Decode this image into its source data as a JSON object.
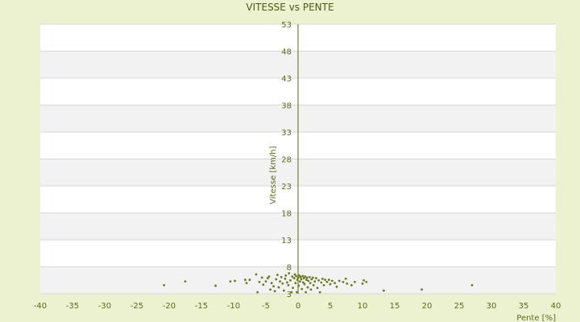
{
  "chart_data": {
    "type": "scatter",
    "title": "VITESSE vs PENTE",
    "xlabel": "Pente [%]",
    "ylabel": "Vitesse [km/h]",
    "xlim": [
      -40,
      40
    ],
    "ylim": [
      3,
      53
    ],
    "xticks": [
      "-40",
      "-35",
      "-30",
      "-25",
      "-20",
      "-15",
      "-10",
      "-5",
      "0",
      "5",
      "10",
      "15",
      "20",
      "25",
      "30",
      "35",
      "40"
    ],
    "yticks": [
      "53",
      "48",
      "43",
      "38",
      "33",
      "28",
      "23",
      "18",
      "13",
      "8",
      "3"
    ],
    "grid": true,
    "colors": {
      "background": "#ecf2d0",
      "band_light": "#ffffff",
      "band_dark": "#f2f2f2",
      "gridline": "#d8d8d8",
      "axis": "#5a6a1a",
      "point": "#6b7a1a"
    },
    "points": [
      [
        -20.8,
        4.6
      ],
      [
        -17.5,
        5.3
      ],
      [
        -12.8,
        4.5
      ],
      [
        -10.5,
        5.3
      ],
      [
        -9.8,
        5.4
      ],
      [
        -8.2,
        5.6
      ],
      [
        -8.0,
        5.0
      ],
      [
        -7.5,
        5.6
      ],
      [
        -6.5,
        6.6
      ],
      [
        -6.3,
        3.3
      ],
      [
        -6.0,
        5.2
      ],
      [
        -5.6,
        6.0
      ],
      [
        -5.4,
        4.7
      ],
      [
        -5.0,
        5.3
      ],
      [
        -4.7,
        5.9
      ],
      [
        -4.5,
        6.2
      ],
      [
        -4.3,
        3.8
      ],
      [
        -4.1,
        5.0
      ],
      [
        -3.8,
        4.4
      ],
      [
        -3.6,
        3.5
      ],
      [
        -3.4,
        5.7
      ],
      [
        -3.2,
        6.5
      ],
      [
        -3.0,
        4.2
      ],
      [
        -2.8,
        5.3
      ],
      [
        -2.6,
        6.1
      ],
      [
        -2.4,
        4.9
      ],
      [
        -2.2,
        3.6
      ],
      [
        -2.0,
        5.8
      ],
      [
        -1.9,
        6.4
      ],
      [
        -1.7,
        5.1
      ],
      [
        -1.5,
        4.6
      ],
      [
        -1.4,
        6.8
      ],
      [
        -1.2,
        5.5
      ],
      [
        -1.0,
        3.3
      ],
      [
        -0.9,
        6.2
      ],
      [
        -0.8,
        4.1
      ],
      [
        -0.6,
        5.9
      ],
      [
        -0.5,
        6.6
      ],
      [
        -0.4,
        5.0
      ],
      [
        -0.3,
        6.3
      ],
      [
        -0.2,
        3.3
      ],
      [
        -0.1,
        5.6
      ],
      [
        0.0,
        6.0
      ],
      [
        0.1,
        4.5
      ],
      [
        0.2,
        6.4
      ],
      [
        0.3,
        5.3
      ],
      [
        0.4,
        6.1
      ],
      [
        0.5,
        5.7
      ],
      [
        0.6,
        3.9
      ],
      [
        0.7,
        6.3
      ],
      [
        0.8,
        5.1
      ],
      [
        0.9,
        5.9
      ],
      [
        1.0,
        4.8
      ],
      [
        1.1,
        6.2
      ],
      [
        1.2,
        3.3
      ],
      [
        1.3,
        5.6
      ],
      [
        1.4,
        6.0
      ],
      [
        1.5,
        4.2
      ],
      [
        1.6,
        5.4
      ],
      [
        1.8,
        6.1
      ],
      [
        1.9,
        5.0
      ],
      [
        2.0,
        3.8
      ],
      [
        2.1,
        5.7
      ],
      [
        2.3,
        6.0
      ],
      [
        2.4,
        4.6
      ],
      [
        2.6,
        5.3
      ],
      [
        2.8,
        5.9
      ],
      [
        3.0,
        4.1
      ],
      [
        3.2,
        5.5
      ],
      [
        3.4,
        3.3
      ],
      [
        3.6,
        5.1
      ],
      [
        3.8,
        5.8
      ],
      [
        4.0,
        4.6
      ],
      [
        4.2,
        5.6
      ],
      [
        4.5,
        5.2
      ],
      [
        4.8,
        5.6
      ],
      [
        5.0,
        4.8
      ],
      [
        5.3,
        5.4
      ],
      [
        5.7,
        5.0
      ],
      [
        6.0,
        4.3
      ],
      [
        6.4,
        5.4
      ],
      [
        7.0,
        5.2
      ],
      [
        7.4,
        5.8
      ],
      [
        7.6,
        4.9
      ],
      [
        8.3,
        4.6
      ],
      [
        8.8,
        5.2
      ],
      [
        10.0,
        4.9
      ],
      [
        10.2,
        5.5
      ],
      [
        10.6,
        5.2
      ],
      [
        13.3,
        3.6
      ],
      [
        19.2,
        3.8
      ],
      [
        27.0,
        4.6
      ]
    ]
  }
}
